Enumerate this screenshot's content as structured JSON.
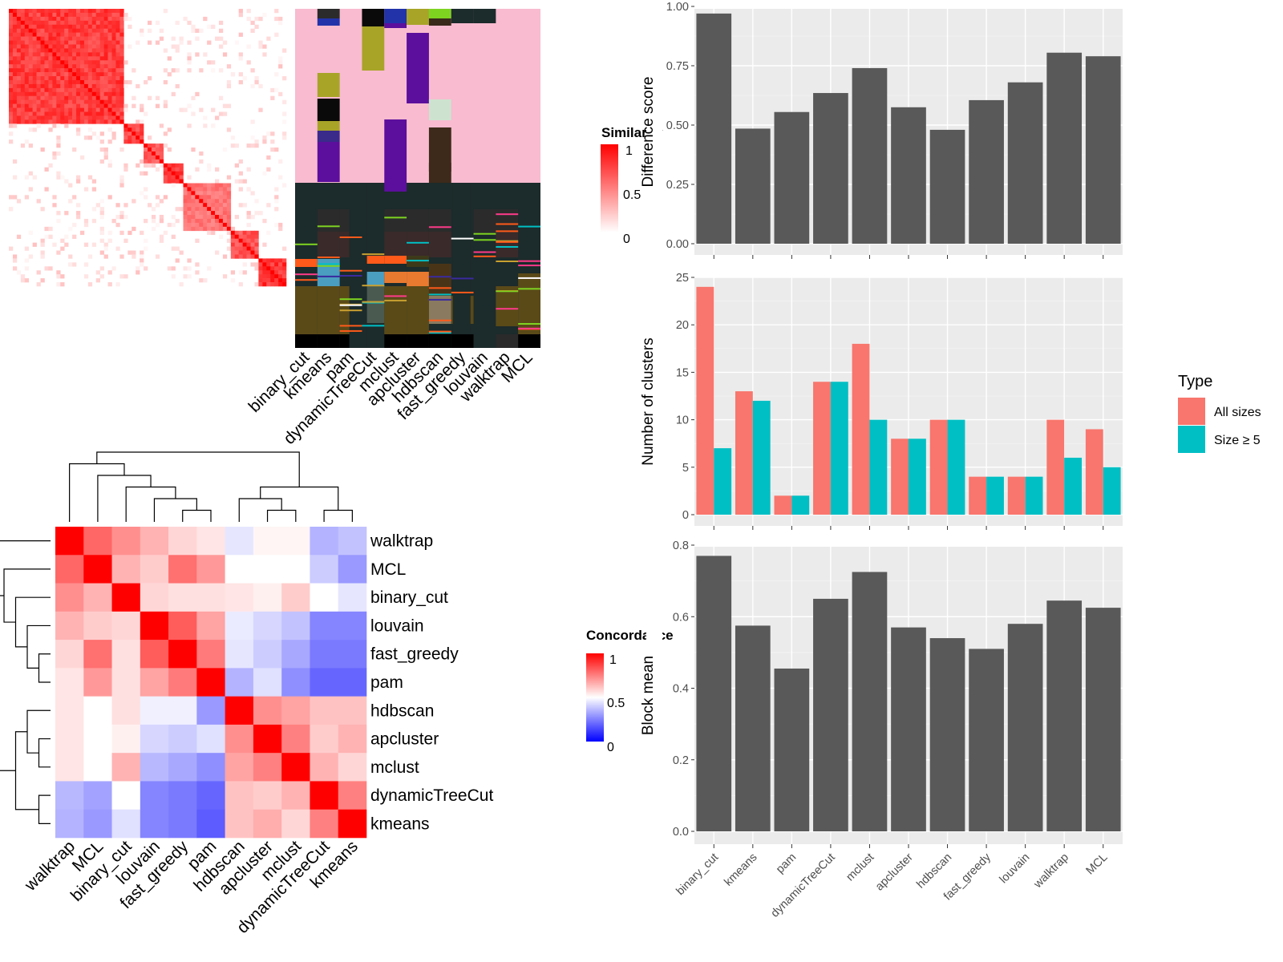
{
  "similarity_legend": {
    "title": "Similarity",
    "ticks": [
      "1",
      "0.5",
      "0"
    ]
  },
  "concordance_legend": {
    "title": "Concordance",
    "ticks": [
      "1",
      "0.5",
      "0"
    ]
  },
  "type_legend": {
    "title": "Type",
    "items": [
      "All sizes",
      "Size ≥ 5"
    ]
  },
  "colors": {
    "bar": "#595959",
    "all_sizes": "#F8766D",
    "size_ge5": "#00BFC4",
    "panel_bg": "#EBEBEB",
    "heat_high": "#FF0000",
    "heat_mid": "#FFFFFF",
    "heat_low": "#0000FF",
    "membership_pink": "#F8BBD0",
    "membership_dark": "#1C2B2B"
  },
  "chart_data": [
    {
      "type": "heatmap",
      "name_note": "top-left sample similarity matrix",
      "blocks": [
        {
          "size": 0.42,
          "value": 0.85
        },
        {
          "size": 0.07,
          "value": 0.8
        },
        {
          "size": 0.07,
          "value": 0.7
        },
        {
          "size": 0.07,
          "value": 0.85
        },
        {
          "size": 0.17,
          "value": 0.6
        },
        {
          "size": 0.1,
          "value": 0.75
        },
        {
          "size": 0.1,
          "value": 0.9
        }
      ],
      "legend_range": [
        0,
        1
      ]
    },
    {
      "type": "heatmap",
      "columns": [
        "binary_cut",
        "kmeans",
        "pam",
        "dynamicTreeCut",
        "mclust",
        "apcluster",
        "hdbscan",
        "fast_greedy",
        "louvain",
        "walktrap",
        "MCL"
      ]
    },
    {
      "type": "heatmap",
      "rows": [
        "walktrap",
        "MCL",
        "binary_cut",
        "louvain",
        "fast_greedy",
        "pam",
        "hdbscan",
        "apcluster",
        "mclust",
        "dynamicTreeCut",
        "kmeans"
      ],
      "columns": [
        "walktrap",
        "MCL",
        "binary_cut",
        "louvain",
        "fast_greedy",
        "pam",
        "hdbscan",
        "apcluster",
        "mclust",
        "dynamicTreeCut",
        "kmeans"
      ],
      "values": [
        [
          1.0,
          0.8,
          0.72,
          0.65,
          0.58,
          0.55,
          0.45,
          0.52,
          0.52,
          0.35,
          0.38
        ],
        [
          0.8,
          1.0,
          0.65,
          0.6,
          0.78,
          0.7,
          0.5,
          0.5,
          0.5,
          0.4,
          0.3
        ],
        [
          0.72,
          0.65,
          1.0,
          0.58,
          0.56,
          0.56,
          0.55,
          0.53,
          0.6,
          0.5,
          0.45
        ],
        [
          0.65,
          0.6,
          0.58,
          1.0,
          0.82,
          0.68,
          0.46,
          0.42,
          0.38,
          0.26,
          0.26
        ],
        [
          0.58,
          0.78,
          0.56,
          0.82,
          1.0,
          0.76,
          0.45,
          0.4,
          0.33,
          0.24,
          0.24
        ],
        [
          0.55,
          0.7,
          0.56,
          0.68,
          0.76,
          1.0,
          0.35,
          0.44,
          0.28,
          0.2,
          0.2
        ],
        [
          0.55,
          0.5,
          0.56,
          0.47,
          0.47,
          0.3,
          1.0,
          0.72,
          0.68,
          0.62,
          0.62
        ],
        [
          0.55,
          0.5,
          0.53,
          0.42,
          0.4,
          0.44,
          0.72,
          1.0,
          0.75,
          0.6,
          0.65
        ],
        [
          0.55,
          0.5,
          0.65,
          0.36,
          0.33,
          0.28,
          0.68,
          0.75,
          1.0,
          0.65,
          0.58
        ],
        [
          0.36,
          0.32,
          0.5,
          0.26,
          0.24,
          0.2,
          0.62,
          0.6,
          0.65,
          1.0,
          0.75
        ],
        [
          0.35,
          0.3,
          0.44,
          0.26,
          0.24,
          0.18,
          0.62,
          0.66,
          0.58,
          0.75,
          1.0
        ]
      ],
      "legend_range": [
        0,
        1
      ]
    },
    {
      "type": "bar",
      "categories": [
        "binary_cut",
        "kmeans",
        "pam",
        "dynamicTreeCut",
        "mclust",
        "apcluster",
        "hdbscan",
        "fast_greedy",
        "louvain",
        "walktrap",
        "MCL"
      ],
      "values": [
        0.97,
        0.485,
        0.555,
        0.635,
        0.74,
        0.575,
        0.48,
        0.605,
        0.68,
        0.805,
        0.79
      ],
      "ylabel": "Difference score",
      "ylim": [
        0,
        1
      ],
      "yticks": [
        "0.00",
        "0.25",
        "0.50",
        "0.75",
        "1.00"
      ]
    },
    {
      "type": "bar",
      "categories": [
        "binary_cut",
        "kmeans",
        "pam",
        "dynamicTreeCut",
        "mclust",
        "apcluster",
        "hdbscan",
        "fast_greedy",
        "louvain",
        "walktrap",
        "MCL"
      ],
      "series": [
        {
          "name": "All sizes",
          "values": [
            24,
            13,
            2,
            14,
            18,
            8,
            10,
            4,
            4,
            10,
            9
          ]
        },
        {
          "name": "Size ≥ 5",
          "values": [
            7,
            12,
            2,
            14,
            10,
            8,
            10,
            4,
            4,
            6,
            5
          ]
        }
      ],
      "ylabel": "Number of clusters",
      "ylim": [
        0,
        25
      ],
      "yticks": [
        "0",
        "5",
        "10",
        "15",
        "20",
        "25"
      ]
    },
    {
      "type": "bar",
      "categories": [
        "binary_cut",
        "kmeans",
        "pam",
        "dynamicTreeCut",
        "mclust",
        "apcluster",
        "hdbscan",
        "fast_greedy",
        "louvain",
        "walktrap",
        "MCL"
      ],
      "values": [
        0.77,
        0.575,
        0.455,
        0.65,
        0.725,
        0.57,
        0.54,
        0.51,
        0.58,
        0.645,
        0.625
      ],
      "ylabel": "Block mean",
      "ylim": [
        0,
        0.8
      ],
      "yticks": [
        "0.0",
        "0.2",
        "0.4",
        "0.6",
        "0.8"
      ]
    }
  ]
}
